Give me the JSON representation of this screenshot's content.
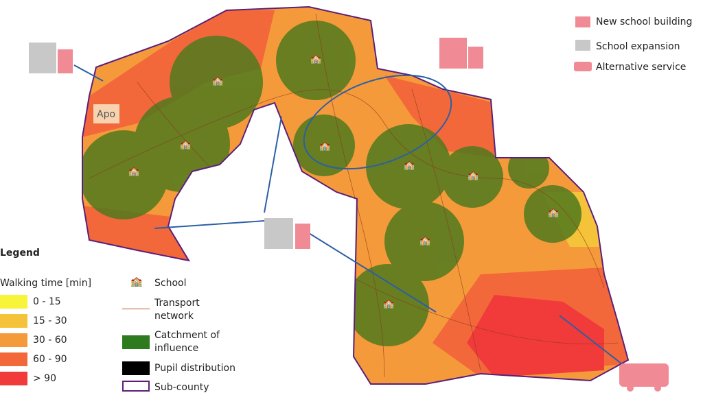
{
  "map": {
    "place_label": "Apo"
  },
  "legend": {
    "title": "Legend",
    "walking_title": "Walking time [min]",
    "walking": [
      {
        "label": "0 - 15",
        "color": "#f7f43a"
      },
      {
        "label": "15 - 30",
        "color": "#f5c33a"
      },
      {
        "label": "30 - 60",
        "color": "#f59a3a"
      },
      {
        "label": "60 - 90",
        "color": "#f3683a"
      },
      {
        "label": "> 90",
        "color": "#f13a3a"
      }
    ],
    "items": [
      {
        "label": "School",
        "icon": "school-icon",
        "color": "#2f6fdc"
      },
      {
        "label": "Transport\nnetwork",
        "line1": "Transport",
        "line2": "network",
        "color": "#b5522a"
      },
      {
        "label": "Catchment of influence",
        "line1": "Catchment of",
        "line2": "influence",
        "color": "#2e7a1e"
      },
      {
        "label": "Pupil distribution",
        "color": "#000000"
      },
      {
        "label": "Sub-county",
        "color": "#5a1f7a"
      }
    ]
  },
  "interventions": [
    {
      "label": "New school building",
      "icon": "new-school-building-icon",
      "color": "#f08a94"
    },
    {
      "label": "School expansion",
      "icon": "school-expansion-icon",
      "color": "#c8c8c8"
    },
    {
      "label": "Alternative service",
      "icon": "bus-icon",
      "color": "#f08a94"
    }
  ]
}
